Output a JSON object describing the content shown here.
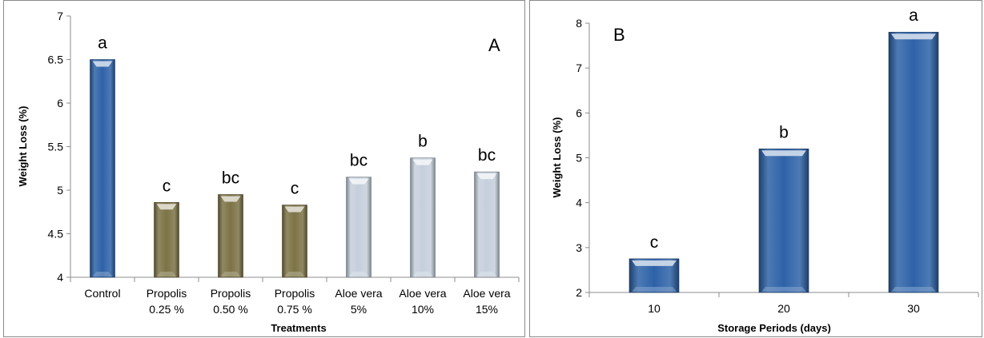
{
  "chart_data": [
    {
      "type": "bar",
      "panel_label": "A",
      "xlabel": "Treatments",
      "ylabel": "Weight Loss (%)",
      "ylim": [
        4,
        7
      ],
      "yticks": [
        "4",
        "4.5",
        "5",
        "5.5",
        "6",
        "6.5",
        "7"
      ],
      "categories": [
        [
          "Control"
        ],
        [
          "Propolis",
          "0.25 %"
        ],
        [
          "Propolis",
          "0.50 %"
        ],
        [
          "Propolis",
          "0.75 %"
        ],
        [
          "Aloe vera",
          "5%"
        ],
        [
          "Aloe vera",
          "10%"
        ],
        [
          "Aloe vera",
          "15%"
        ]
      ],
      "values": [
        6.5,
        4.86,
        4.95,
        4.83,
        5.15,
        5.37,
        5.21
      ],
      "annotations": [
        "a",
        "c",
        "bc",
        "c",
        "bc",
        "b",
        "bc"
      ],
      "bar_colors": [
        "#2e62a8",
        "#7d7346",
        "#7d7346",
        "#7d7346",
        "#c5cfdc",
        "#c5cfdc",
        "#c5cfdc"
      ],
      "grid": false
    },
    {
      "type": "bar",
      "panel_label": "B",
      "xlabel": "Storage Periods (days)",
      "ylabel": "Weight Loss (%)",
      "ylim": [
        2,
        8
      ],
      "yticks": [
        "2",
        "3",
        "4",
        "5",
        "6",
        "7",
        "8"
      ],
      "categories": [
        [
          "10"
        ],
        [
          "20"
        ],
        [
          "30"
        ]
      ],
      "values": [
        2.75,
        5.2,
        7.8
      ],
      "annotations": [
        "c",
        "b",
        "a"
      ],
      "bar_colors": [
        "#2e62a8",
        "#2e62a8",
        "#2e62a8"
      ],
      "grid": false
    }
  ]
}
